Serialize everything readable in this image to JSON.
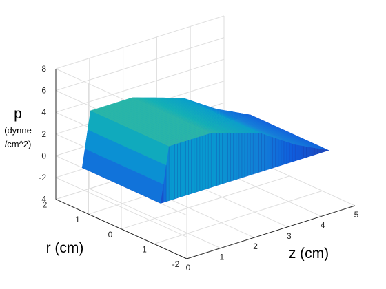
{
  "chart_data": {
    "type": "surface",
    "xlabel": "z (cm)",
    "ylabel": "r (cm)",
    "zlabel": {
      "line1": "p",
      "line2": "(dynne",
      "line3": "/cm^2)"
    },
    "xlim": [
      0,
      5
    ],
    "ylim": [
      -2,
      2
    ],
    "zlim": [
      -4,
      8
    ],
    "xticks": [
      "0",
      "1",
      "2",
      "3",
      "4",
      "5"
    ],
    "yticks": [
      "-2",
      "-1",
      "0",
      "1",
      "2"
    ],
    "zticks": [
      "-4",
      "-2",
      "0",
      "2",
      "4",
      "6",
      "8"
    ],
    "grid": true,
    "colormap": "parula",
    "surface": {
      "description_points": [
        {
          "z": 0.0,
          "p_high": 0
        },
        {
          "z": 0.25,
          "p_high": 5.0
        },
        {
          "z": 1.5,
          "p_high": 5.0
        },
        {
          "z": 3.0,
          "p_high": 3.5
        },
        {
          "z": 4.0,
          "p_high": 1.5
        },
        {
          "z": 5.0,
          "p_high": 0
        }
      ],
      "slab_r_range": [
        -1.2,
        1.2
      ],
      "floor_value": 0
    }
  }
}
